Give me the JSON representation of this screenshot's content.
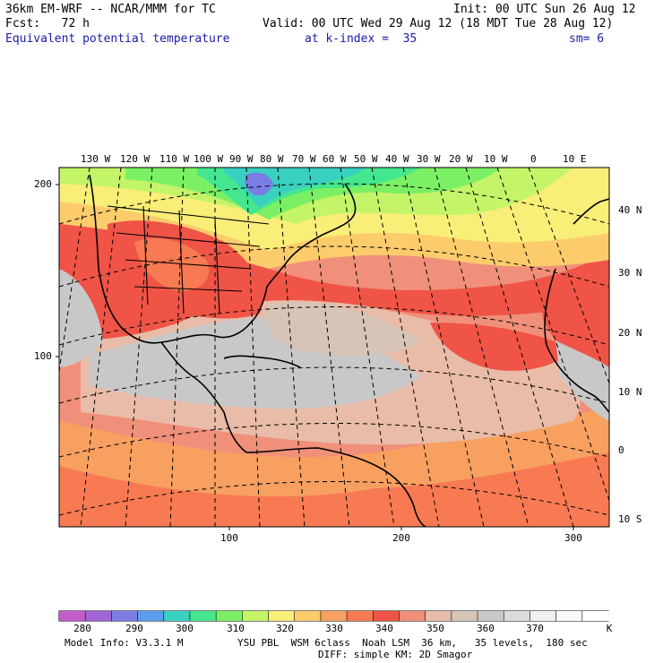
{
  "header": {
    "model_line": "36km EM-WRF -- NCAR/MMM for TC",
    "init_line": "Init: 00 UTC Sun 26 Aug 12",
    "fcst_line": "Fcst:   72 h",
    "valid_line": "Valid: 00 UTC Wed 29 Aug 12 (18 MDT Tue 28 Aug 12)",
    "field_name": "Equivalent potential temperature",
    "level_line": "at k-index =  35",
    "smooth_line": "sm= 6"
  },
  "map": {
    "top_longitudes": [
      "130 W",
      "120 W",
      "110 W",
      "100 W",
      "90 W",
      "80 W",
      "70 W",
      "60 W",
      "50 W",
      "40 W",
      "30 W",
      "20 W",
      "10 W",
      "0",
      "10 E"
    ],
    "right_latitudes": [
      "40 N",
      "30 N",
      "20 N",
      "10 N",
      "0",
      "10 S"
    ],
    "left_grid_ticks": [
      "200",
      "100"
    ],
    "bottom_grid_ticks": [
      "100",
      "200",
      "300"
    ]
  },
  "colorbar": {
    "labels": [
      "280",
      "290",
      "300",
      "310",
      "320",
      "330",
      "340",
      "350",
      "360",
      "370"
    ],
    "unit": "K",
    "colors": [
      "#c45ccc",
      "#a066d8",
      "#7a7ee4",
      "#5b9cec",
      "#3ad0c0",
      "#44e690",
      "#7cf064",
      "#c4f468",
      "#f8ee78",
      "#fccc6c",
      "#f8a060",
      "#f87a52",
      "#f05446",
      "#f0907a",
      "#e8bca8",
      "#d6c4b6",
      "#c8c8c8",
      "#dcdcdc",
      "#f0f0f0",
      "#fafafa",
      "#ffffff"
    ]
  },
  "footer": {
    "info_line": "Model Info: V3.3.1 M",
    "physics_line": "YSU PBL  WSM 6class  Noah LSM  36 km,   35 levels,  180 sec",
    "diff_line": "DIFF: simple KM: 2D Smagor"
  }
}
